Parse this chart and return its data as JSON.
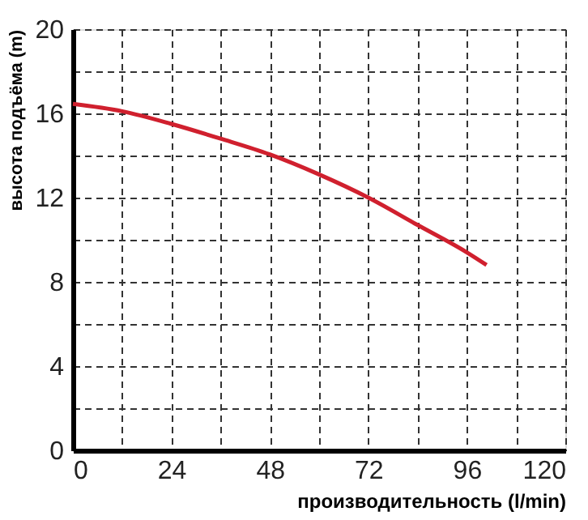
{
  "chart_data": {
    "type": "line",
    "xlabel": "производительность (l/min)",
    "ylabel": "высота подъёма (m)",
    "x": [
      0,
      12,
      24,
      36,
      48,
      60,
      72,
      84,
      96,
      100.8
    ],
    "series": [
      {
        "color": "#d0202e",
        "values": [
          16.45,
          16.1,
          15.5,
          14.8,
          14.05,
          13.1,
          12.0,
          10.7,
          9.4,
          8.8
        ]
      }
    ],
    "xlim": [
      0,
      120
    ],
    "ylim": [
      0,
      20
    ],
    "xticks": [
      0,
      {
        "value": 12,
        "label": null
      },
      24,
      {
        "value": 36,
        "label": null
      },
      48,
      {
        "value": 60,
        "label": null
      },
      72,
      {
        "value": 84,
        "label": null
      },
      96,
      {
        "value": 108,
        "label": null
      },
      120
    ],
    "yticks": [
      0,
      {
        "value": 2,
        "label": null
      },
      4,
      {
        "value": 6,
        "label": null
      },
      8,
      {
        "value": 10,
        "label": null
      },
      12,
      {
        "value": 14,
        "label": null
      },
      16,
      {
        "value": 18,
        "label": null
      },
      20
    ],
    "grid": true,
    "line_style": "solid",
    "marker": "none"
  }
}
